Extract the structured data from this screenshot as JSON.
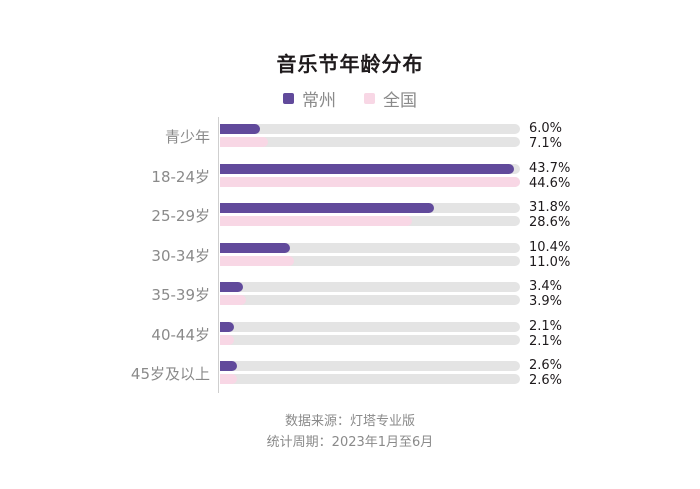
{
  "chart_data": {
    "type": "bar",
    "orientation": "horizontal",
    "title": "音乐节年龄分布",
    "categories": [
      "青少年",
      "18-24岁",
      "25-29岁",
      "30-34岁",
      "35-39岁",
      "40-44岁",
      "45岁及以上"
    ],
    "series": [
      {
        "name": "常州",
        "color": "#614a9b",
        "values": [
          6.0,
          43.7,
          31.8,
          10.4,
          3.4,
          2.1,
          2.6
        ],
        "labels": [
          "6.0%",
          "43.7%",
          "31.8%",
          "10.4%",
          "3.4%",
          "2.1%",
          "2.6%"
        ]
      },
      {
        "name": "全国",
        "color": "#f8d7e5",
        "values": [
          7.1,
          44.6,
          28.6,
          11.0,
          3.9,
          2.1,
          2.6
        ],
        "labels": [
          "7.1%",
          "44.6%",
          "28.6%",
          "11.0%",
          "3.9%",
          "2.1%",
          "2.6%"
        ]
      }
    ],
    "xlim": [
      0,
      44.6
    ],
    "track_color": "#e4e4e4",
    "xlabel": "",
    "ylabel": "",
    "grid": false,
    "legend_position": "top"
  },
  "legend": {
    "items": [
      {
        "label": "常州",
        "color": "#614a9b"
      },
      {
        "label": "全国",
        "color": "#f8d7e5"
      }
    ]
  },
  "footer": {
    "source": "数据来源：灯塔专业版",
    "period": "统计周期：2023年1月至6月"
  }
}
